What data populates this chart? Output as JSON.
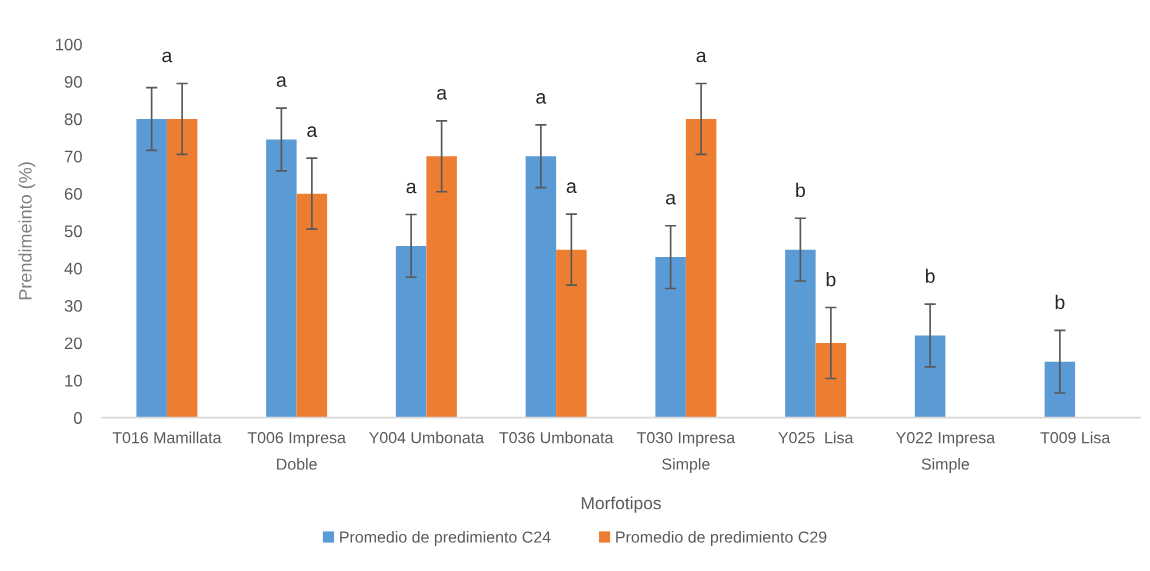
{
  "chart_data": {
    "type": "bar",
    "xlabel": "Morfotipos",
    "ylabel": "Prendimeinto (%)",
    "categories": [
      "T016 Mamillata",
      "T006 Impresa Doble",
      "Y004 Umbonata",
      "T036 Umbonata",
      "T030 Impresa Simple",
      "Y025  Lisa",
      "Y022 Impresa Simple",
      "T009 Lisa"
    ],
    "series": [
      {
        "name": "Promedio de predimiento C24",
        "color": "#5b9bd5",
        "values": [
          80,
          74.5,
          46,
          70,
          43,
          45,
          22,
          15
        ],
        "errors": [
          8.4,
          8.4,
          8.4,
          8.4,
          8.4,
          8.4,
          8.4,
          8.4
        ],
        "value_labels": [
          "a",
          "a",
          "a",
          "a",
          "a",
          "b",
          "b",
          "b"
        ]
      },
      {
        "name": "Promedio de predimiento C29",
        "color": "#ed7d31",
        "values": [
          80,
          60,
          70,
          45,
          80,
          20,
          null,
          null
        ],
        "errors": [
          9.5,
          9.5,
          9.5,
          9.5,
          9.5,
          9.5,
          null,
          null
        ],
        "value_labels": [
          null,
          "a",
          "a",
          "a",
          "a",
          "b",
          null,
          null
        ]
      }
    ],
    "ylim": [
      0,
      100
    ],
    "yticks": [
      0,
      10,
      20,
      30,
      40,
      50,
      60,
      70,
      80,
      90,
      100
    ],
    "legend": "bottom"
  }
}
